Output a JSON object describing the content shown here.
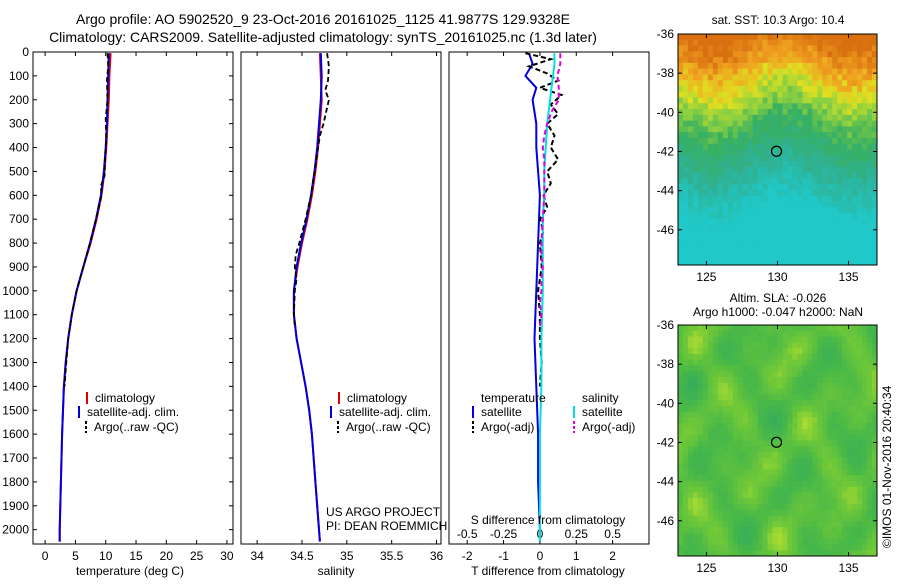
{
  "header": {
    "title1": "Argo profile: AO 5902520_9 23-Oct-2016 20161025_1125 41.9877S 129.9328E",
    "title2": "Climatology: CARS2009. Satellite-adjusted climatology: synTS_20161025.nc (1.3d later)"
  },
  "credits": {
    "project": "US ARGO PROJECT",
    "pi": "PI: DEAN ROEMMICH",
    "imos": "©IMOS 01-Nov-2016 20:40:34"
  },
  "colors": {
    "climatology": "#e00000",
    "satellite": "#0000e0",
    "argo": "#000000",
    "satellite_salinity": "#00e0e0",
    "argo_salinity": "#e000e0"
  },
  "depth_ticks": [
    "0",
    "100",
    "200",
    "300",
    "400",
    "500",
    "600",
    "700",
    "800",
    "900",
    "1000",
    "1100",
    "1200",
    "1300",
    "1400",
    "1500",
    "1600",
    "1700",
    "1800",
    "1900",
    "2000"
  ],
  "chart_data": [
    {
      "type": "line",
      "xlabel": "temperature (deg C)",
      "ylabel": "",
      "xlim": [
        -2,
        31
      ],
      "ylim": [
        2060,
        0
      ],
      "x_ticks": [
        "0",
        "5",
        "10",
        "15",
        "20",
        "25",
        "30"
      ],
      "legend": [
        "climatology",
        "satellite-adj. clim.",
        "Argo(..raw -QC)"
      ],
      "series": [
        {
          "name": "climatology",
          "depth": [
            5,
            100,
            200,
            300,
            400,
            500,
            600,
            700,
            800,
            900,
            1000,
            1100,
            1200,
            1300,
            1400,
            1600,
            1800,
            2000,
            2050
          ],
          "values": [
            10.8,
            10.6,
            10.5,
            10.3,
            10.1,
            9.8,
            9.3,
            8.5,
            7.5,
            6.3,
            5.2,
            4.4,
            3.8,
            3.4,
            3.1,
            2.8,
            2.6,
            2.4,
            2.4
          ]
        },
        {
          "name": "satellite-adj. clim.",
          "depth": [
            5,
            100,
            200,
            300,
            400,
            500,
            600,
            700,
            800,
            900,
            1000,
            1100,
            1200,
            1300,
            1400,
            1600,
            1800,
            2000,
            2050
          ],
          "values": [
            10.5,
            10.4,
            10.3,
            10.2,
            10.0,
            9.7,
            9.2,
            8.4,
            7.4,
            6.3,
            5.2,
            4.4,
            3.8,
            3.4,
            3.1,
            2.8,
            2.6,
            2.4,
            2.4
          ]
        },
        {
          "name": "Argo(..raw -QC)",
          "depth": [
            5,
            60,
            120,
            200,
            280,
            360,
            440,
            520,
            560,
            600,
            700,
            800,
            900,
            1000,
            1100,
            1200,
            1300,
            1400
          ],
          "values": [
            10.3,
            10.4,
            10.2,
            10.3,
            10.0,
            10.1,
            9.9,
            9.8,
            9.2,
            9.3,
            8.4,
            7.4,
            6.3,
            5.2,
            4.4,
            3.8,
            3.5,
            3.2
          ]
        }
      ]
    },
    {
      "type": "line",
      "xlabel": "salinity",
      "ylabel": "",
      "xlim": [
        33.82,
        36.05
      ],
      "ylim": [
        2060,
        0
      ],
      "x_ticks": [
        "34",
        "34.5",
        "35",
        "35.5",
        "36"
      ],
      "legend": [
        "climatology",
        "satellite-adj. clim.",
        "Argo(..raw -QC)"
      ],
      "series": [
        {
          "name": "climatology",
          "depth": [
            5,
            100,
            200,
            300,
            400,
            500,
            600,
            700,
            800,
            900,
            1000,
            1100,
            1200,
            1300,
            1400,
            1500,
            1600,
            1800,
            2000,
            2050
          ],
          "values": [
            34.7,
            34.71,
            34.72,
            34.7,
            34.68,
            34.65,
            34.61,
            34.56,
            34.5,
            34.45,
            34.41,
            34.41,
            34.44,
            34.49,
            34.54,
            34.58,
            34.61,
            34.65,
            34.69,
            34.7
          ]
        },
        {
          "name": "satellite-adj. clim.",
          "depth": [
            5,
            100,
            200,
            300,
            400,
            500,
            600,
            700,
            800,
            900,
            1000,
            1100,
            1200,
            1300,
            1400,
            1500,
            1600,
            1800,
            2000,
            2050
          ],
          "values": [
            34.71,
            34.72,
            34.71,
            34.69,
            34.67,
            34.64,
            34.6,
            34.55,
            34.49,
            34.44,
            34.41,
            34.41,
            34.44,
            34.49,
            34.54,
            34.58,
            34.61,
            34.65,
            34.69,
            34.7
          ]
        },
        {
          "name": "Argo(..raw -QC)",
          "depth": [
            5,
            60,
            120,
            160,
            200,
            250,
            300,
            350,
            400,
            500,
            600,
            700,
            800,
            850,
            900,
            950,
            1000,
            1100,
            1150
          ],
          "values": [
            34.78,
            34.8,
            34.79,
            34.76,
            34.8,
            34.77,
            34.74,
            34.7,
            34.68,
            34.64,
            34.6,
            34.54,
            34.47,
            34.43,
            34.42,
            34.44,
            34.42,
            34.41,
            34.42
          ]
        }
      ]
    },
    {
      "type": "line",
      "xlabel": "T difference from climatology",
      "title": "S difference from climatology",
      "xlim": [
        -2.5,
        3
      ],
      "ylim": [
        2060,
        0
      ],
      "x_ticks": [
        "-2",
        "-1",
        "0",
        "1",
        "2"
      ],
      "top_ticks": [
        "-0.5",
        "-0.25",
        "0",
        "0.25",
        "0.5"
      ],
      "legend_headers": [
        "temperature",
        "salinity"
      ],
      "legend": [
        "satellite",
        "Argo(-adj)",
        "satellite",
        "Argo(-adj)"
      ],
      "series": [
        {
          "name": "satellite",
          "variable": "temperature",
          "depth": [
            5,
            50,
            100,
            150,
            200,
            300,
            400,
            600,
            800,
            1000,
            1200,
            1400,
            1600,
            1800,
            2000,
            2050
          ],
          "values": [
            -0.3,
            -0.2,
            -0.4,
            -0.1,
            -0.2,
            -0.1,
            -0.1,
            0.0,
            -0.05,
            -0.1,
            -0.15,
            -0.1,
            -0.05,
            -0.05,
            0.0,
            0.0
          ]
        },
        {
          "name": "Argo(-adj)",
          "variable": "temperature",
          "depth": [
            5,
            30,
            60,
            90,
            120,
            150,
            180,
            220,
            260,
            300,
            350,
            400,
            450,
            500,
            550,
            600,
            650,
            700,
            750,
            800,
            900,
            1000,
            1100,
            1200,
            1300,
            1400
          ],
          "values": [
            -0.4,
            0.3,
            -0.3,
            0.2,
            0.5,
            0.0,
            0.6,
            0.3,
            0.5,
            0.2,
            0.4,
            0.3,
            0.5,
            0.2,
            0.3,
            0.1,
            0.2,
            0.0,
            0.1,
            0.0,
            0.05,
            -0.05,
            0.0,
            0.0,
            0.05,
            0.0
          ]
        },
        {
          "name": "satellite",
          "variable": "salinity",
          "depth": [
            5,
            50,
            100,
            150,
            200,
            300,
            400,
            500,
            600,
            700,
            800,
            1000,
            1200,
            1400,
            1600,
            1800,
            2000,
            2050
          ],
          "values": [
            0.1,
            0.1,
            0.09,
            0.08,
            0.07,
            0.05,
            0.04,
            0.03,
            0.03,
            0.02,
            0.02,
            0.02,
            0.01,
            0.01,
            0.0,
            0.0,
            0.0,
            0.0
          ]
        },
        {
          "name": "Argo(-adj)",
          "variable": "salinity",
          "depth": [
            5,
            50,
            100,
            150,
            200,
            250,
            300,
            350,
            400,
            450,
            500,
            600,
            700,
            800,
            850,
            900,
            950,
            1000,
            1050,
            1100,
            1150
          ],
          "values": [
            0.14,
            0.14,
            0.12,
            0.13,
            0.13,
            0.08,
            0.05,
            0.03,
            0.02,
            0.03,
            0.03,
            0.03,
            0.02,
            0.01,
            0.01,
            0.02,
            0.01,
            0.01,
            0.0,
            0.01,
            0.0
          ]
        }
      ]
    },
    {
      "type": "heatmap",
      "title": "sat. SST: 10.3 Argo: 10.4",
      "x_ticks": [
        "125",
        "130",
        "135"
      ],
      "y_ticks": [
        "-36",
        "-38",
        "-40",
        "-42",
        "-44",
        "-46"
      ],
      "xlim": [
        123,
        137
      ],
      "ylim": [
        -47.8,
        -36
      ],
      "marker": {
        "lon": 129.93,
        "lat": -41.99
      }
    },
    {
      "type": "heatmap",
      "title": "Altim. SLA: -0.026",
      "subtitle": "Argo h1000: -0.047 h2000: NaN",
      "x_ticks": [
        "125",
        "130",
        "135"
      ],
      "y_ticks": [
        "-36",
        "-38",
        "-40",
        "-42",
        "-44",
        "-46"
      ],
      "xlim": [
        123,
        137
      ],
      "ylim": [
        -47.8,
        -36
      ],
      "marker": {
        "lon": 129.93,
        "lat": -41.99
      }
    }
  ]
}
